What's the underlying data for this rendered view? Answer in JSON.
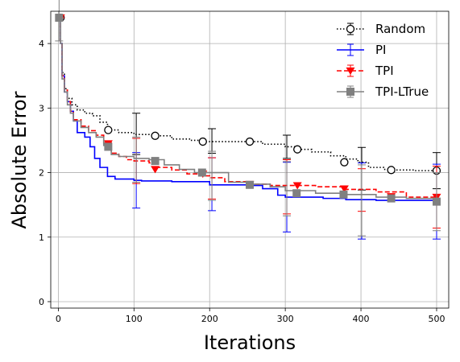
{
  "chart_data": {
    "type": "line",
    "title": "",
    "xlabel": "Iterations",
    "ylabel": "Absolute Error",
    "xlim": [
      -10,
      516
    ],
    "ylim": [
      -0.1,
      4.5
    ],
    "xticks": [
      0,
      100,
      200,
      300,
      400,
      500
    ],
    "yticks": [
      0,
      1,
      2,
      3,
      4
    ],
    "grid": true,
    "legend_position": "top-right",
    "series": [
      {
        "name": "Random",
        "color": "#000000",
        "dash": "dotted",
        "marker": "circle-open",
        "line": [
          [
            1,
            4.4
          ],
          [
            3,
            4.0
          ],
          [
            5,
            3.55
          ],
          [
            8,
            3.3
          ],
          [
            12,
            3.15
          ],
          [
            18,
            3.05
          ],
          [
            25,
            2.97
          ],
          [
            35,
            2.92
          ],
          [
            45,
            2.88
          ],
          [
            55,
            2.78
          ],
          [
            65,
            2.66
          ],
          [
            80,
            2.62
          ],
          [
            100,
            2.59
          ],
          [
            115,
            2.59
          ],
          [
            127,
            2.57
          ],
          [
            150,
            2.52
          ],
          [
            175,
            2.5
          ],
          [
            190,
            2.48
          ],
          [
            220,
            2.48
          ],
          [
            252,
            2.48
          ],
          [
            270,
            2.44
          ],
          [
            300,
            2.4
          ],
          [
            315,
            2.36
          ],
          [
            335,
            2.32
          ],
          [
            360,
            2.26
          ],
          [
            380,
            2.21
          ],
          [
            396,
            2.16
          ],
          [
            410,
            2.08
          ],
          [
            430,
            2.05
          ],
          [
            438,
            2.04
          ],
          [
            470,
            2.03
          ],
          [
            500,
            2.03
          ]
        ],
        "markers": [
          [
            3,
            4.4
          ],
          [
            66,
            2.66
          ],
          [
            128,
            2.57
          ],
          [
            191,
            2.48
          ],
          [
            253,
            2.48
          ],
          [
            316,
            2.36
          ],
          [
            378,
            2.16
          ],
          [
            440,
            2.04
          ],
          [
            500,
            2.03
          ]
        ],
        "errorbars": [
          [
            3,
            4.4,
            0.0
          ],
          [
            103,
            2.6,
            0.32
          ],
          [
            203,
            2.49,
            0.19
          ],
          [
            302,
            2.4,
            0.18
          ],
          [
            401,
            2.06,
            0.33
          ],
          [
            500,
            2.03,
            0.28
          ]
        ]
      },
      {
        "name": "PI",
        "color": "#0000ff",
        "dash": "solid",
        "marker": "none",
        "line": [
          [
            1,
            4.4
          ],
          [
            3,
            4.0
          ],
          [
            5,
            3.5
          ],
          [
            8,
            3.25
          ],
          [
            12,
            3.1
          ],
          [
            16,
            2.95
          ],
          [
            20,
            2.8
          ],
          [
            25,
            2.62
          ],
          [
            35,
            2.55
          ],
          [
            42,
            2.4
          ],
          [
            48,
            2.22
          ],
          [
            55,
            2.08
          ],
          [
            65,
            1.94
          ],
          [
            75,
            1.9
          ],
          [
            100,
            1.88
          ],
          [
            110,
            1.87
          ],
          [
            150,
            1.86
          ],
          [
            200,
            1.81
          ],
          [
            250,
            1.8
          ],
          [
            270,
            1.75
          ],
          [
            290,
            1.65
          ],
          [
            300,
            1.62
          ],
          [
            350,
            1.6
          ],
          [
            380,
            1.58
          ],
          [
            420,
            1.57
          ],
          [
            500,
            1.56
          ]
        ],
        "markers": [],
        "errorbars": [
          [
            3,
            4.4,
            0.0
          ],
          [
            103,
            1.88,
            0.43
          ],
          [
            203,
            1.82,
            0.41
          ],
          [
            302,
            1.62,
            0.54
          ],
          [
            401,
            1.56,
            0.59
          ],
          [
            500,
            1.55,
            0.58
          ]
        ]
      },
      {
        "name": "TPI",
        "color": "#ff0000",
        "dash": "dashed",
        "marker": "triangle-down",
        "line": [
          [
            1,
            4.4
          ],
          [
            3,
            4.0
          ],
          [
            5,
            3.5
          ],
          [
            8,
            3.28
          ],
          [
            12,
            3.1
          ],
          [
            16,
            2.95
          ],
          [
            20,
            2.82
          ],
          [
            30,
            2.72
          ],
          [
            40,
            2.65
          ],
          [
            50,
            2.58
          ],
          [
            60,
            2.46
          ],
          [
            70,
            2.3
          ],
          [
            80,
            2.25
          ],
          [
            90,
            2.2
          ],
          [
            100,
            2.18
          ],
          [
            120,
            2.15
          ],
          [
            130,
            2.08
          ],
          [
            150,
            2.04
          ],
          [
            170,
            1.98
          ],
          [
            190,
            1.95
          ],
          [
            200,
            1.92
          ],
          [
            220,
            1.86
          ],
          [
            250,
            1.82
          ],
          [
            280,
            1.8
          ],
          [
            310,
            1.8
          ],
          [
            340,
            1.78
          ],
          [
            380,
            1.74
          ],
          [
            420,
            1.7
          ],
          [
            460,
            1.62
          ],
          [
            500,
            1.62
          ]
        ],
        "markers": [
          [
            3,
            4.4
          ],
          [
            66,
            2.45
          ],
          [
            128,
            2.05
          ],
          [
            191,
            1.98
          ],
          [
            253,
            1.82
          ],
          [
            316,
            1.8
          ],
          [
            378,
            1.75
          ],
          [
            440,
            1.63
          ],
          [
            500,
            1.62
          ]
        ],
        "errorbars": [
          [
            3,
            4.4,
            0.0
          ],
          [
            103,
            2.18,
            0.35
          ],
          [
            203,
            1.91,
            0.32
          ],
          [
            302,
            1.78,
            0.42
          ],
          [
            401,
            1.73,
            0.33
          ],
          [
            500,
            1.62,
            0.48
          ]
        ]
      },
      {
        "name": "TPI-LTrue",
        "color": "#808080",
        "dash": "solid",
        "marker": "square",
        "line": [
          [
            1,
            4.4
          ],
          [
            3,
            4.0
          ],
          [
            5,
            3.45
          ],
          [
            8,
            3.25
          ],
          [
            12,
            3.05
          ],
          [
            16,
            2.92
          ],
          [
            20,
            2.8
          ],
          [
            30,
            2.7
          ],
          [
            40,
            2.62
          ],
          [
            50,
            2.55
          ],
          [
            60,
            2.42
          ],
          [
            70,
            2.28
          ],
          [
            80,
            2.25
          ],
          [
            100,
            2.22
          ],
          [
            120,
            2.2
          ],
          [
            140,
            2.12
          ],
          [
            160,
            2.05
          ],
          [
            180,
            2.0
          ],
          [
            200,
            2.0
          ],
          [
            222,
            2.0
          ],
          [
            225,
            1.85
          ],
          [
            250,
            1.82
          ],
          [
            280,
            1.78
          ],
          [
            300,
            1.72
          ],
          [
            340,
            1.68
          ],
          [
            380,
            1.66
          ],
          [
            420,
            1.62
          ],
          [
            460,
            1.6
          ],
          [
            500,
            1.55
          ]
        ],
        "markers": [
          [
            1,
            4.4
          ],
          [
            66,
            2.4
          ],
          [
            128,
            2.18
          ],
          [
            190,
            2.0
          ],
          [
            253,
            1.81
          ],
          [
            315,
            1.68
          ],
          [
            377,
            1.66
          ],
          [
            440,
            1.6
          ],
          [
            500,
            1.55
          ]
        ],
        "errorbars": [
          [
            1,
            4.4,
            0.36
          ],
          [
            103,
            2.2,
            0.35
          ],
          [
            203,
            1.95,
            0.38
          ],
          [
            302,
            1.75,
            0.42
          ],
          [
            401,
            1.57,
            0.55
          ],
          [
            500,
            1.55,
            0.45
          ]
        ]
      }
    ]
  }
}
